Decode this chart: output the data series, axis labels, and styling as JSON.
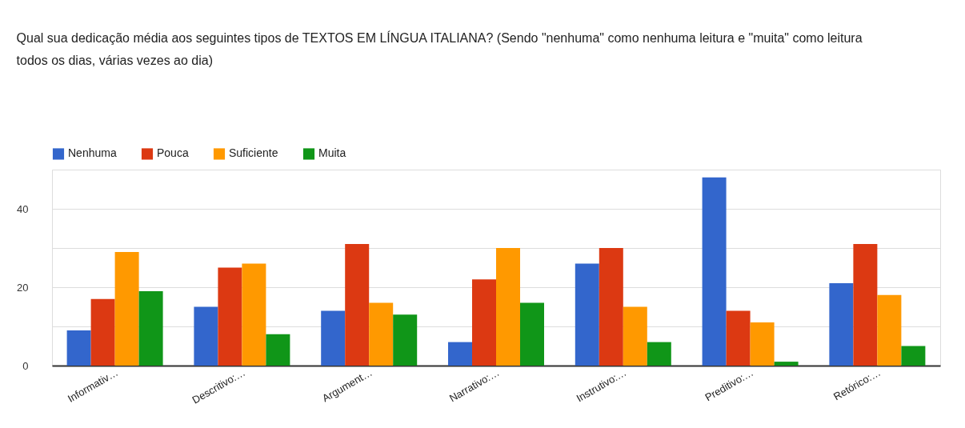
{
  "chart_data": {
    "type": "bar",
    "title": "Qual sua dedicação média aos seguintes tipos de TEXTOS EM LÍNGUA ITALIANA? (Sendo \"nenhuma\" como nenhuma leitura e \"muita\" como leitura todos os dias, várias vezes ao dia)",
    "categories": [
      "Informativ…",
      "Descritivo:…",
      "Argument…",
      "Narrativo:…",
      "Instrutivo:…",
      "Preditivo:…",
      "Retórico:…"
    ],
    "series": [
      {
        "name": "Nenhuma",
        "color": "#3366cc",
        "values": [
          9,
          15,
          14,
          6,
          26,
          48,
          21
        ]
      },
      {
        "name": "Pouca",
        "color": "#dc3912",
        "values": [
          17,
          25,
          31,
          22,
          30,
          14,
          31
        ]
      },
      {
        "name": "Suficiente",
        "color": "#ff9900",
        "values": [
          29,
          26,
          16,
          30,
          15,
          11,
          18
        ]
      },
      {
        "name": "Muita",
        "color": "#109618",
        "values": [
          19,
          8,
          13,
          16,
          6,
          1,
          5
        ]
      }
    ],
    "ylim": [
      0,
      50
    ],
    "yticks": [
      0,
      {
        "value": 10,
        "label": null
      },
      20,
      {
        "value": 30,
        "label": null
      },
      40,
      {
        "value": 50,
        "label": null
      }
    ],
    "grid": "y",
    "legend": "top left"
  }
}
